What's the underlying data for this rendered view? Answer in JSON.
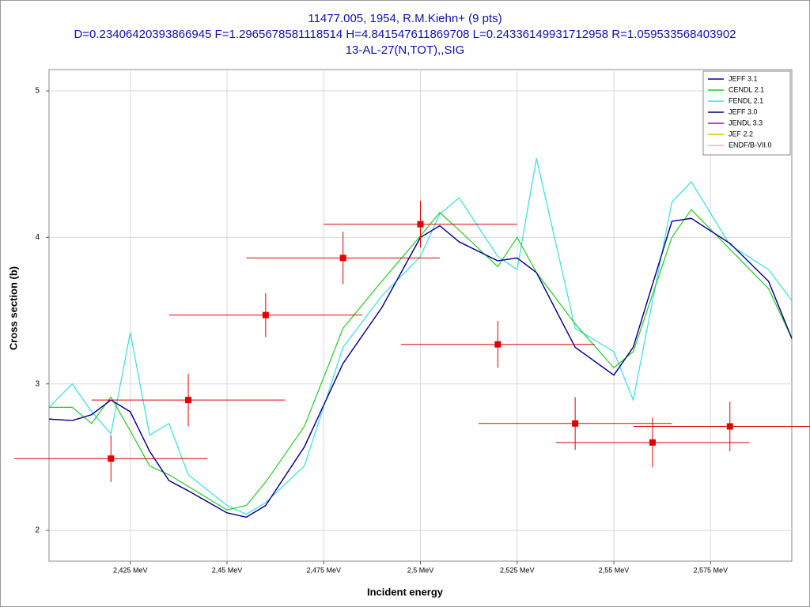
{
  "chart_data": {
    "type": "line",
    "title": "11477.005, 1954, R.M.Kiehn+ (9 pts)",
    "subtitle": "D=0.23406420393866945 F=1.2965678581118514 H=4.841547611869708 L=0.24336149931712958 R=1.059533568403902",
    "reaction": "13-AL-27(N,TOT),,SIG",
    "xlabel": "Incident energy",
    "ylabel": "Cross section (b)",
    "xlim": [
      2.404,
      2.596
    ],
    "ylim": [
      1.79,
      5.146
    ],
    "xticks": [
      {
        "value": 2.425,
        "label": "2,425 MeV"
      },
      {
        "value": 2.45,
        "label": "2,45 MeV"
      },
      {
        "value": 2.475,
        "label": "2,475 MeV"
      },
      {
        "value": 2.5,
        "label": "2,5 MeV"
      },
      {
        "value": 2.525,
        "label": "2,525 MeV"
      },
      {
        "value": 2.55,
        "label": "2,55 MeV"
      },
      {
        "value": 2.575,
        "label": "2,575 MeV"
      }
    ],
    "yticks": [
      2,
      3,
      4,
      5
    ],
    "grid": true,
    "legend": "top-right",
    "x": [
      2.404,
      2.41,
      2.415,
      2.42,
      2.425,
      2.43,
      2.435,
      2.44,
      2.45,
      2.455,
      2.46,
      2.47,
      2.48,
      2.49,
      2.5,
      2.505,
      2.51,
      2.52,
      2.525,
      2.53,
      2.54,
      2.55,
      2.555,
      2.565,
      2.57,
      2.58,
      2.59,
      2.596
    ],
    "series": [
      {
        "name": "JEFF 3.1",
        "color": "#0000a0",
        "values": [
          2.76,
          2.75,
          2.79,
          2.89,
          2.81,
          2.54,
          2.34,
          2.27,
          2.12,
          2.09,
          2.17,
          2.57,
          3.14,
          3.52,
          4.0,
          4.08,
          3.97,
          3.84,
          3.86,
          3.76,
          3.25,
          3.06,
          3.25,
          4.11,
          4.13,
          3.96,
          3.7,
          3.31
        ]
      },
      {
        "name": "CENDL 2.1",
        "color": "#22cc22",
        "values": [
          2.84,
          2.84,
          2.73,
          2.91,
          2.68,
          2.44,
          2.38,
          2.3,
          2.14,
          2.17,
          2.33,
          2.71,
          3.38,
          3.7,
          4.01,
          4.17,
          4.05,
          3.8,
          4.0,
          3.76,
          3.41,
          3.11,
          3.22,
          4.0,
          4.19,
          3.92,
          3.65,
          3.31
        ]
      },
      {
        "name": "FENDL 2.1",
        "color": "#33e0e0",
        "values": [
          2.84,
          3.0,
          2.81,
          2.66,
          3.35,
          2.65,
          2.73,
          2.38,
          2.17,
          2.11,
          2.19,
          2.44,
          3.25,
          3.6,
          3.87,
          4.16,
          4.27,
          3.87,
          3.78,
          4.54,
          3.38,
          3.22,
          2.89,
          4.24,
          4.38,
          3.95,
          3.78,
          3.57
        ]
      },
      {
        "name": "JEFF 3.0",
        "color": "#000060",
        "values": [
          2.76,
          2.75,
          2.79,
          2.89,
          2.81,
          2.54,
          2.34,
          2.27,
          2.12,
          2.09,
          2.17,
          2.57,
          3.14,
          3.52,
          4.0,
          4.08,
          3.97,
          3.84,
          3.86,
          3.76,
          3.25,
          3.06,
          3.25,
          4.11,
          4.13,
          3.96,
          3.7,
          3.31
        ]
      },
      {
        "name": "JENDL 3.3",
        "color": "#b000b0",
        "values": [
          2.76,
          2.75,
          2.79,
          2.89,
          2.81,
          2.54,
          2.34,
          2.27,
          2.12,
          2.09,
          2.17,
          2.57,
          3.14,
          3.52,
          4.0,
          4.08,
          3.97,
          3.84,
          3.86,
          3.76,
          3.25,
          3.06,
          3.25,
          4.11,
          4.13,
          3.96,
          3.7,
          3.31
        ]
      },
      {
        "name": "JEF 2.2",
        "color": "#e0c000",
        "values": [
          2.76,
          2.75,
          2.79,
          2.89,
          2.81,
          2.54,
          2.34,
          2.27,
          2.12,
          2.09,
          2.17,
          2.57,
          3.14,
          3.52,
          4.0,
          4.08,
          3.97,
          3.84,
          3.86,
          3.76,
          3.25,
          3.06,
          3.25,
          4.11,
          4.13,
          3.96,
          3.7,
          3.31
        ]
      },
      {
        "name": "ENDF/B-VII.0",
        "color": "#ffb0c0",
        "values": [
          2.76,
          2.75,
          2.79,
          2.89,
          2.81,
          2.54,
          2.34,
          2.27,
          2.12,
          2.09,
          2.17,
          2.57,
          3.14,
          3.52,
          4.0,
          4.08,
          3.97,
          3.84,
          3.86,
          3.76,
          3.25,
          3.06,
          3.25,
          4.11,
          4.13,
          3.96,
          3.7,
          3.31
        ]
      }
    ],
    "points": {
      "color": "#e00000",
      "x": [
        2.42,
        2.44,
        2.46,
        2.48,
        2.5,
        2.52,
        2.54,
        2.56,
        2.58
      ],
      "values": [
        2.49,
        2.89,
        3.47,
        3.86,
        4.09,
        3.27,
        2.73,
        2.6,
        2.71
      ],
      "yerr": [
        0.16,
        0.18,
        0.15,
        0.18,
        0.16,
        0.16,
        0.18,
        0.17,
        0.17
      ],
      "xerr": [
        0.025,
        0.025,
        0.025,
        0.025,
        0.025,
        0.025,
        0.025,
        0.025,
        0.025
      ]
    }
  }
}
